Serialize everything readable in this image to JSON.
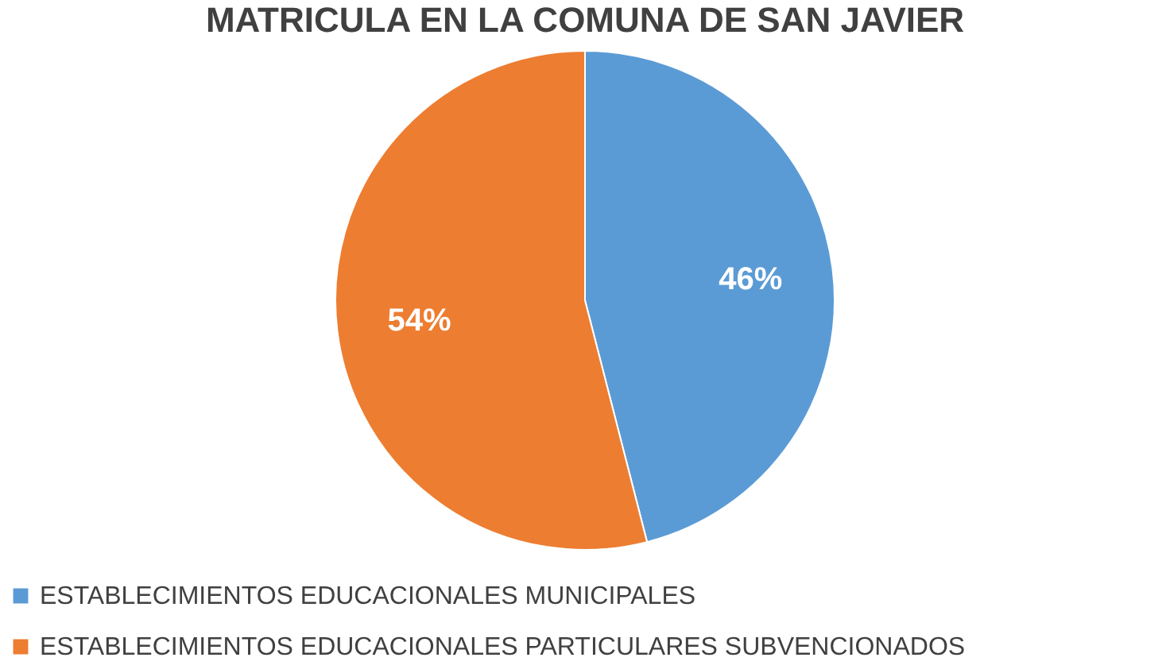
{
  "chart_data": {
    "type": "pie",
    "title": "MATRICULA EN LA COMUNA DE SAN JAVIER",
    "categories": [
      "ESTABLECIMIENTOS EDUCACIONALES MUNICIPALES",
      "ESTABLECIMIENTOS EDUCACIONALES PARTICULARES SUBVENCIONADOS"
    ],
    "values": [
      46,
      54
    ],
    "colors": [
      "#5b9bd5",
      "#ed7d31"
    ],
    "value_labels": [
      "46%",
      "54%"
    ],
    "legend": "bottom left"
  }
}
